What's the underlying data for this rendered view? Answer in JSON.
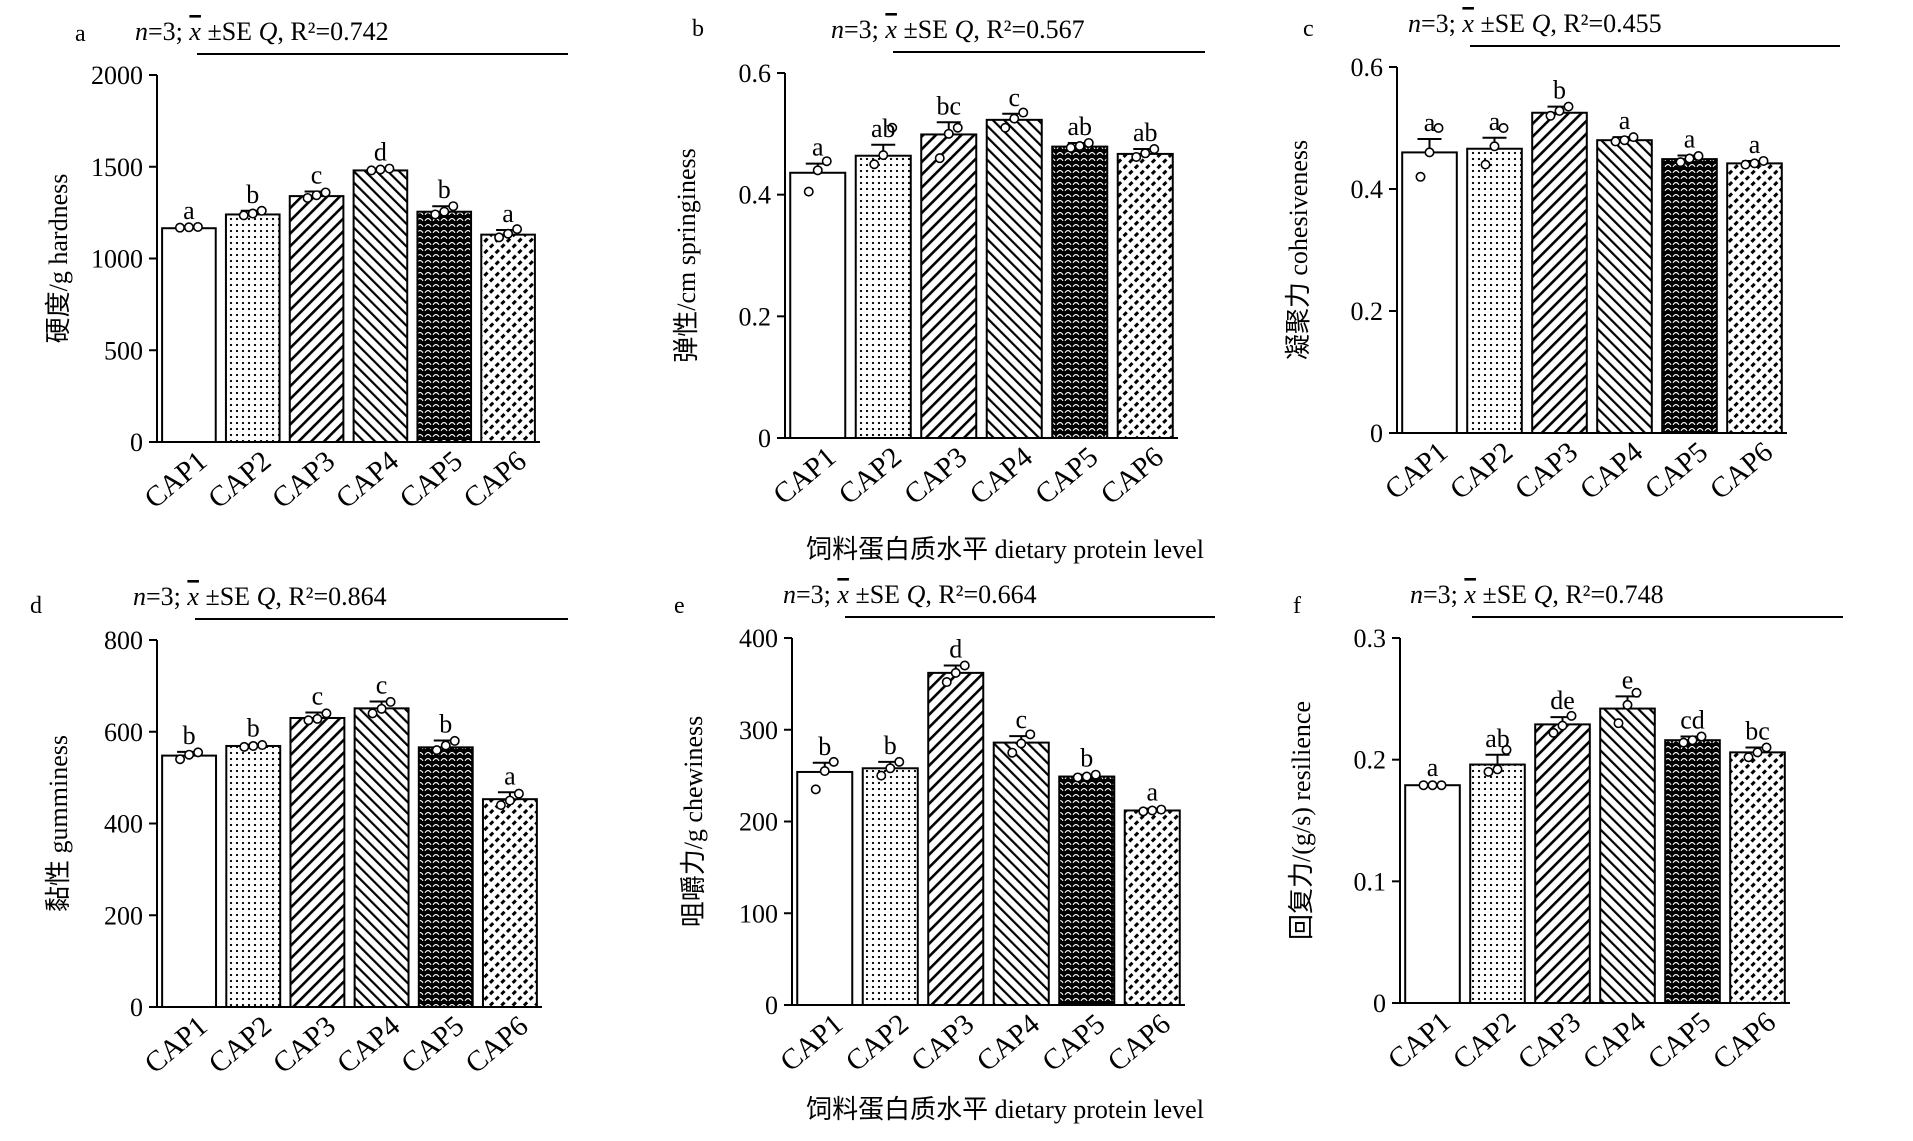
{
  "figure": {
    "shared_xlabel": "饲料蛋白质水平 dietary protein level"
  },
  "chart_data": [
    {
      "type": "bar",
      "panel": "a",
      "categories": [
        "CAP1",
        "CAP2",
        "CAP3",
        "CAP4",
        "CAP5",
        "CAP6"
      ],
      "values": [
        1165,
        1240,
        1340,
        1480,
        1255,
        1130
      ],
      "errors": [
        8,
        20,
        25,
        10,
        30,
        25
      ],
      "points": [
        [
          1168,
          1170,
          1172
        ],
        [
          1235,
          1245,
          1260
        ],
        [
          1330,
          1345,
          1360
        ],
        [
          1480,
          1485,
          1490
        ],
        [
          1240,
          1255,
          1285
        ],
        [
          1115,
          1135,
          1160
        ]
      ],
      "letters": [
        "a",
        "b",
        "c",
        "d",
        "b",
        "a"
      ],
      "ylabel": "硬度/g hardness",
      "yticks": [
        "0",
        "500",
        "1000",
        "1500",
        "2000"
      ],
      "ylim": [
        0,
        2000
      ],
      "annotation_n": "n=3;",
      "annotation_stat": "±SE",
      "annotation_q": "Q, R²=0.742",
      "grid": false
    },
    {
      "type": "bar",
      "panel": "b",
      "categories": [
        "CAP1",
        "CAP2",
        "CAP3",
        "CAP4",
        "CAP5",
        "CAP6"
      ],
      "values": [
        0.436,
        0.464,
        0.499,
        0.523,
        0.479,
        0.467
      ],
      "errors": [
        0.015,
        0.018,
        0.02,
        0.01,
        0.006,
        0.008
      ],
      "points": [
        [
          0.405,
          0.44,
          0.455
        ],
        [
          0.45,
          0.465,
          0.51
        ],
        [
          0.46,
          0.5,
          0.51
        ],
        [
          0.51,
          0.525,
          0.535
        ],
        [
          0.477,
          0.48,
          0.485
        ],
        [
          0.462,
          0.468,
          0.475
        ]
      ],
      "letters": [
        "a",
        "ab",
        "bc",
        "c",
        "ab",
        "ab"
      ],
      "ylabel": "弹性/cm springiness",
      "yticks": [
        "0",
        "0.2",
        "0.4",
        "0.6"
      ],
      "ylim": [
        0,
        0.6
      ],
      "annotation_n": "n=3;",
      "annotation_stat": "±SE",
      "annotation_q": "Q, R²=0.567",
      "grid": false
    },
    {
      "type": "bar",
      "panel": "c",
      "categories": [
        "CAP1",
        "CAP2",
        "CAP3",
        "CAP4",
        "CAP5",
        "CAP6"
      ],
      "values": [
        0.46,
        0.466,
        0.525,
        0.48,
        0.449,
        0.442
      ],
      "errors": [
        0.022,
        0.018,
        0.01,
        0.005,
        0.006,
        0.004
      ],
      "points": [
        [
          0.42,
          0.46,
          0.5
        ],
        [
          0.44,
          0.47,
          0.5
        ],
        [
          0.52,
          0.528,
          0.535
        ],
        [
          0.478,
          0.48,
          0.485
        ],
        [
          0.444,
          0.45,
          0.454
        ],
        [
          0.44,
          0.442,
          0.446
        ]
      ],
      "letters": [
        "a",
        "a",
        "b",
        "a",
        "a",
        "a"
      ],
      "ylabel": "凝聚力 cohesiveness",
      "yticks": [
        "0",
        "0.2",
        "0.4",
        "0.6"
      ],
      "ylim": [
        0,
        0.6
      ],
      "annotation_n": "n=3;",
      "annotation_stat": "±SE",
      "annotation_q": "Q, R²=0.455",
      "grid": false
    },
    {
      "type": "bar",
      "panel": "d",
      "categories": [
        "CAP1",
        "CAP2",
        "CAP3",
        "CAP4",
        "CAP5",
        "CAP6"
      ],
      "values": [
        548,
        569,
        630,
        651,
        566,
        453
      ],
      "errors": [
        8,
        3,
        12,
        15,
        15,
        15
      ],
      "points": [
        [
          540,
          550,
          555
        ],
        [
          567,
          569,
          571
        ],
        [
          625,
          628,
          640
        ],
        [
          640,
          650,
          665
        ],
        [
          560,
          570,
          580
        ],
        [
          440,
          450,
          465
        ]
      ],
      "letters": [
        "b",
        "b",
        "c",
        "c",
        "b",
        "a"
      ],
      "ylabel": "黏性 gumminess",
      "yticks": [
        "0",
        "200",
        "400",
        "600",
        "800"
      ],
      "ylim": [
        0,
        800
      ],
      "annotation_n": "n=3;",
      "annotation_stat": "±SE",
      "annotation_q": "Q, R²=0.864",
      "grid": false
    },
    {
      "type": "bar",
      "panel": "e",
      "categories": [
        "CAP1",
        "CAP2",
        "CAP3",
        "CAP4",
        "CAP5",
        "CAP6"
      ],
      "values": [
        254,
        258,
        362,
        286,
        249,
        212
      ],
      "errors": [
        10,
        7,
        8,
        7,
        2,
        2
      ],
      "points": [
        [
          235,
          255,
          265
        ],
        [
          250,
          258,
          265
        ],
        [
          352,
          362,
          370
        ],
        [
          275,
          285,
          295
        ],
        [
          248,
          249,
          251
        ],
        [
          211,
          212,
          213
        ]
      ],
      "letters": [
        "b",
        "b",
        "d",
        "c",
        "b",
        "a"
      ],
      "ylabel": "咀嚼力/g chewiness",
      "yticks": [
        "0",
        "100",
        "200",
        "300",
        "400"
      ],
      "ylim": [
        0,
        400
      ],
      "annotation_n": "n=3;",
      "annotation_stat": "±SE",
      "annotation_q": "Q, R²=0.664",
      "grid": false
    },
    {
      "type": "bar",
      "panel": "f",
      "categories": [
        "CAP1",
        "CAP2",
        "CAP3",
        "CAP4",
        "CAP5",
        "CAP6"
      ],
      "values": [
        0.179,
        0.196,
        0.229,
        0.242,
        0.216,
        0.206
      ],
      "errors": [
        0.001,
        0.008,
        0.006,
        0.01,
        0.003,
        0.004
      ],
      "points": [
        [
          0.179,
          0.179,
          0.179
        ],
        [
          0.19,
          0.192,
          0.208
        ],
        [
          0.222,
          0.228,
          0.236
        ],
        [
          0.23,
          0.245,
          0.255
        ],
        [
          0.214,
          0.216,
          0.219
        ],
        [
          0.202,
          0.206,
          0.21
        ]
      ],
      "letters": [
        "a",
        "ab",
        "de",
        "e",
        "cd",
        "bc"
      ],
      "ylabel": "回复力/(g/s) resilience",
      "yticks": [
        "0",
        "0.1",
        "0.2",
        "0.3"
      ],
      "ylim": [
        0,
        0.3
      ],
      "annotation_n": "n=3;",
      "annotation_stat": "±SE",
      "annotation_q": "Q, R²=0.748",
      "grid": false
    }
  ]
}
